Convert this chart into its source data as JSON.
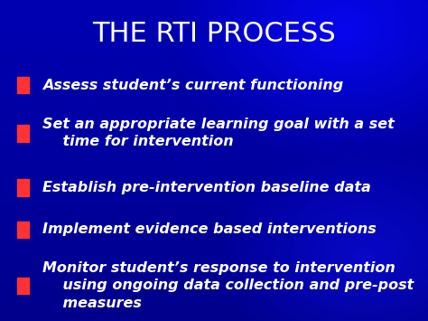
{
  "title": "THE RTI PROCESS",
  "title_color": "#FFFFFF",
  "title_fontsize": 22,
  "bg_color": "#0000AA",
  "bullet_color": "#FF3333",
  "text_color": "#FFFFFF",
  "text_fontsize": 11.5,
  "bullet_items": [
    "Assess student’s current functioning",
    "Set an appropriate learning goal with a set\n    time for intervention",
    "Establish pre-intervention baseline data",
    "Implement evidence based interventions",
    "Monitor student’s response to intervention\n    using ongoing data collection and pre-post\n    measures"
  ],
  "figwidth": 4.74,
  "figheight": 3.55,
  "dpi": 100
}
